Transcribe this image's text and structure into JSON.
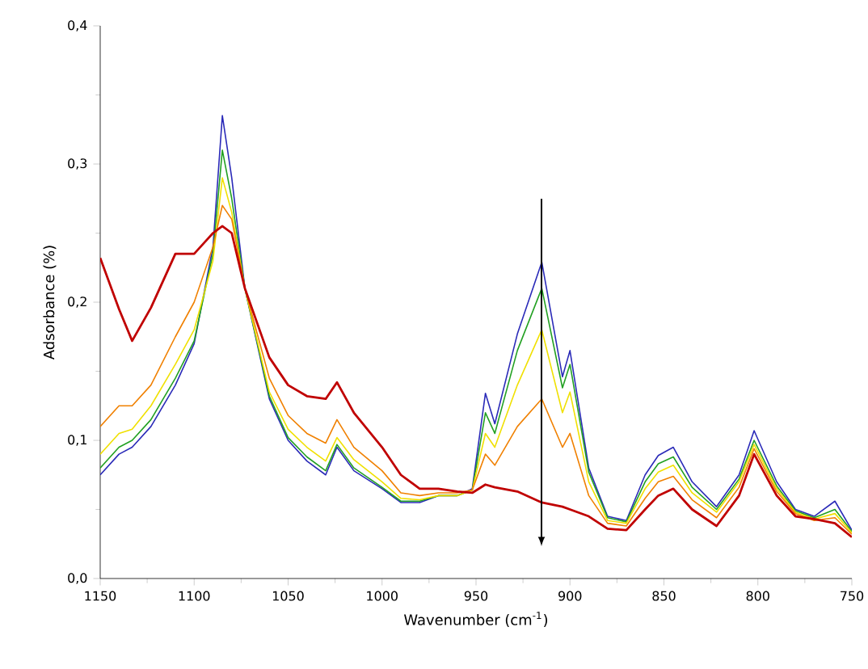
{
  "chart_data": {
    "type": "line",
    "xlabel": "Wavenumber (cm$^{-1}$)",
    "ylabel": "Adsorbance (%)",
    "x": [
      1150,
      1140,
      1133,
      1123,
      1110,
      1100,
      1090,
      1085,
      1080,
      1073,
      1060,
      1050,
      1040,
      1030,
      1024,
      1015,
      1000,
      990,
      980,
      970,
      960,
      952,
      945,
      940,
      928,
      915,
      904,
      900,
      890,
      880,
      870,
      860,
      853,
      845,
      835,
      822,
      810,
      802,
      790,
      780,
      770,
      759,
      750
    ],
    "series": [
      {
        "color": "#2a2ab8",
        "values": [
          0.075,
          0.09,
          0.095,
          0.11,
          0.14,
          0.17,
          0.24,
          0.335,
          0.29,
          0.21,
          0.13,
          0.1,
          0.085,
          0.075,
          0.095,
          0.078,
          0.065,
          0.055,
          0.055,
          0.06,
          0.06,
          0.065,
          0.134,
          0.112,
          0.177,
          0.229,
          0.146,
          0.165,
          0.08,
          0.045,
          0.042,
          0.075,
          0.089,
          0.095,
          0.07,
          0.052,
          0.075,
          0.107,
          0.07,
          0.05,
          0.045,
          0.056,
          0.035
        ]
      },
      {
        "color": "#22a022",
        "values": [
          0.08,
          0.095,
          0.1,
          0.115,
          0.145,
          0.172,
          0.235,
          0.31,
          0.275,
          0.21,
          0.132,
          0.102,
          0.088,
          0.078,
          0.097,
          0.08,
          0.066,
          0.056,
          0.056,
          0.06,
          0.06,
          0.064,
          0.12,
          0.105,
          0.165,
          0.21,
          0.138,
          0.155,
          0.077,
          0.044,
          0.041,
          0.07,
          0.083,
          0.088,
          0.066,
          0.05,
          0.072,
          0.1,
          0.067,
          0.049,
          0.044,
          0.05,
          0.034
        ]
      },
      {
        "color": "#f0e000",
        "values": [
          0.09,
          0.105,
          0.108,
          0.125,
          0.155,
          0.18,
          0.23,
          0.29,
          0.265,
          0.21,
          0.135,
          0.108,
          0.095,
          0.085,
          0.102,
          0.086,
          0.07,
          0.058,
          0.057,
          0.06,
          0.06,
          0.064,
          0.105,
          0.095,
          0.14,
          0.18,
          0.12,
          0.135,
          0.07,
          0.042,
          0.04,
          0.065,
          0.077,
          0.082,
          0.062,
          0.048,
          0.07,
          0.097,
          0.065,
          0.048,
          0.043,
          0.047,
          0.033
        ]
      },
      {
        "color": "#f08000",
        "values": [
          0.11,
          0.125,
          0.125,
          0.14,
          0.175,
          0.2,
          0.24,
          0.27,
          0.26,
          0.21,
          0.145,
          0.118,
          0.105,
          0.098,
          0.115,
          0.095,
          0.078,
          0.062,
          0.06,
          0.062,
          0.062,
          0.064,
          0.09,
          0.082,
          0.11,
          0.13,
          0.095,
          0.105,
          0.06,
          0.04,
          0.038,
          0.058,
          0.07,
          0.074,
          0.057,
          0.044,
          0.066,
          0.094,
          0.063,
          0.047,
          0.042,
          0.044,
          0.032
        ]
      },
      {
        "color": "#c00000",
        "values": [
          0.232,
          0.195,
          0.172,
          0.196,
          0.235,
          0.235,
          0.25,
          0.255,
          0.25,
          0.21,
          0.16,
          0.14,
          0.132,
          0.13,
          0.142,
          0.12,
          0.095,
          0.075,
          0.065,
          0.065,
          0.063,
          0.062,
          0.068,
          0.066,
          0.063,
          0.055,
          0.052,
          0.05,
          0.045,
          0.036,
          0.035,
          0.05,
          0.06,
          0.065,
          0.05,
          0.038,
          0.06,
          0.09,
          0.06,
          0.045,
          0.043,
          0.04,
          0.03
        ]
      }
    ],
    "xlim": [
      1150,
      750
    ],
    "xticks": [
      1150,
      1100,
      1050,
      1000,
      950,
      900,
      850,
      800,
      750
    ],
    "ylim": [
      0,
      0.4
    ],
    "yticks": [
      {
        "value": 0,
        "label": "0,0"
      },
      {
        "value": 0.1,
        "label": "0,1"
      },
      {
        "value": 0.2,
        "label": "0,2"
      },
      {
        "value": 0.3,
        "label": "0,3"
      },
      {
        "value": 0.4,
        "label": "0,4"
      }
    ],
    "grid": false,
    "marker": "none",
    "line_style": "solid"
  }
}
